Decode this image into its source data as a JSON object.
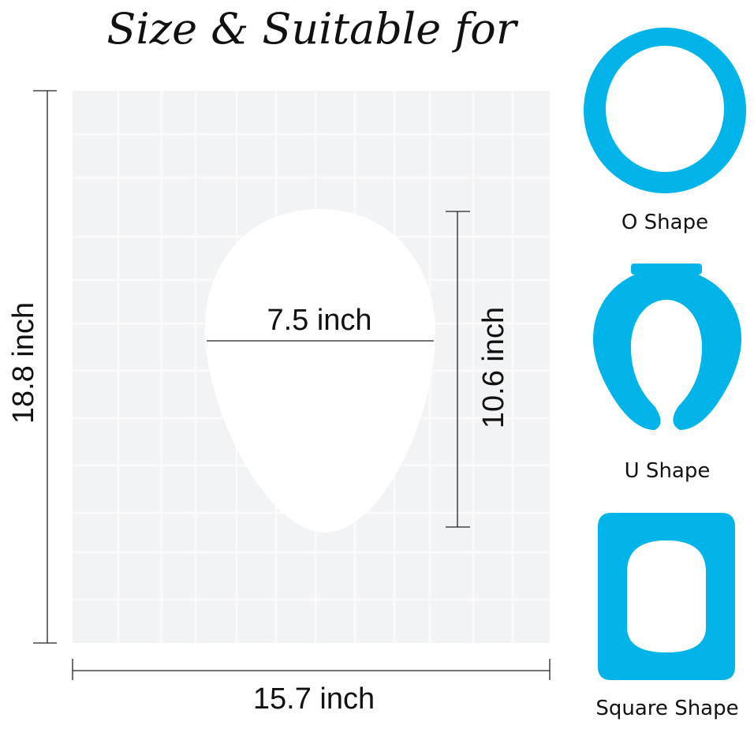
{
  "title": "Size & Suitable for",
  "dimensions": {
    "height": "18.8 inch",
    "width": "15.7 inch",
    "hole_width": "7.5 inch",
    "hole_height": "10.6 inch"
  },
  "shapes": [
    {
      "label": "O Shape"
    },
    {
      "label": "U Shape"
    },
    {
      "label": "Square Shape"
    }
  ],
  "colors": {
    "seat_blue": "#00B4EA",
    "sheet": "#F2F3F4"
  }
}
